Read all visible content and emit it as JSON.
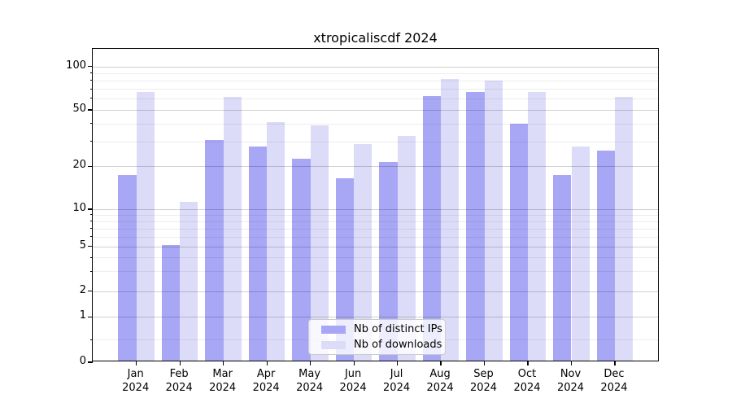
{
  "title": "xtropicaliscdf 2024",
  "legend": {
    "items": [
      {
        "label": "Nb of distinct IPs"
      },
      {
        "label": "Nb of downloads"
      }
    ]
  },
  "colors": {
    "distinct_ips_bar": "#a7a7f5",
    "downloads_bar": "#dcdcf8",
    "major_grid": "#c9c9c9",
    "minor_grid": "#ececec",
    "axis": "#000000"
  },
  "chart_data": {
    "type": "bar",
    "title": "xtropicaliscdf 2024",
    "xlabel": "",
    "ylabel": "",
    "year": "2024",
    "categories": [
      "Jan",
      "Feb",
      "Mar",
      "Apr",
      "May",
      "Jun",
      "Jul",
      "Aug",
      "Sep",
      "Oct",
      "Nov",
      "Dec"
    ],
    "series": [
      {
        "name": "Nb of distinct IPs",
        "color": "#a7a7f5",
        "values": [
          17,
          5,
          30,
          27,
          22,
          16,
          21,
          61,
          65,
          39,
          17,
          25
        ]
      },
      {
        "name": "Nb of downloads",
        "color": "#dcdcf8",
        "values": [
          65,
          11,
          60,
          40,
          38,
          28,
          32,
          80,
          78,
          65,
          27,
          60
        ]
      }
    ],
    "yscale": "symlog",
    "yticks": [
      0,
      1,
      2,
      5,
      10,
      20,
      50,
      100
    ],
    "minor_yticks": [
      0.5,
      3,
      4,
      6,
      7,
      8,
      9,
      30,
      40,
      60,
      70,
      80,
      90
    ],
    "ylim": [
      0,
      133
    ],
    "grid": true,
    "legend_position": "lower center"
  }
}
